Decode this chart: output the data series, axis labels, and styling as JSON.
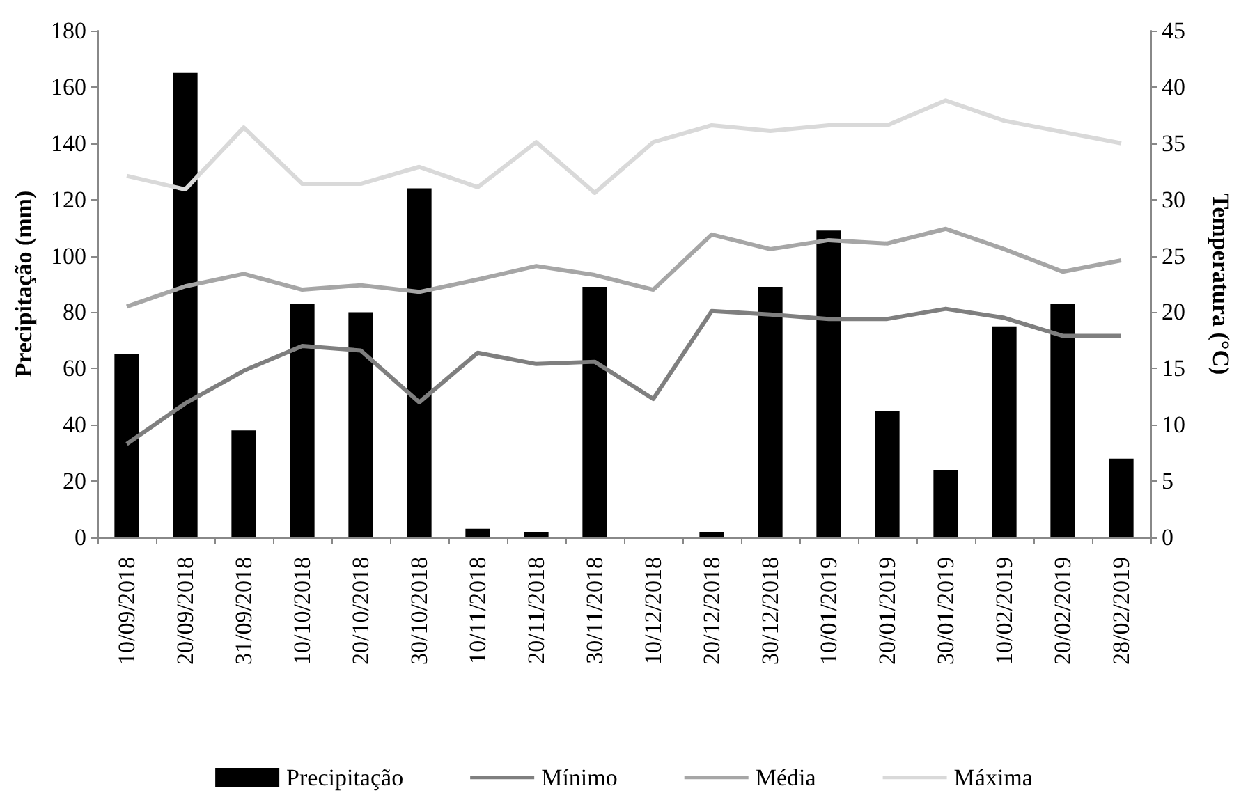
{
  "chart_data": {
    "type": "bar",
    "ylabel": "Precipitação (mm)",
    "y2label": "Temperatura (°C)",
    "categories": [
      "10/09/2018",
      "20/09/2018",
      "31/09/2018",
      "10/10/2018",
      "20/10/2018",
      "30/10/2018",
      "10/11/2018",
      "20/11/2018",
      "30/11/2018",
      "10/12/2018",
      "20/12/2018",
      "30/12/2018",
      "10/01/2019",
      "20/01/2019",
      "30/01/2019",
      "10/02/2019",
      "20/02/2019",
      "28/02/2019"
    ],
    "series": [
      {
        "name": "Precipitação",
        "color": "#000000",
        "values": [
          65,
          165,
          38,
          83,
          80,
          124,
          3,
          2,
          89,
          0,
          2,
          89,
          109,
          45,
          24,
          75,
          83,
          28
        ]
      },
      {
        "name": "Mínimo",
        "type": "line",
        "axis": "y2",
        "color": "#7f7f7f",
        "values": [
          8.3,
          11.9,
          14.8,
          17,
          16.6,
          12,
          16.4,
          15.4,
          15.6,
          12.3,
          20.1,
          19.8,
          19.4,
          19.4,
          20.3,
          19.5,
          17.9,
          17.9
        ]
      },
      {
        "name": "Média",
        "type": "line",
        "axis": "y2",
        "color": "#a6a6a6",
        "values": [
          20.5,
          22.3,
          23.4,
          22,
          22.4,
          21.8,
          22.9,
          24.1,
          23.3,
          22,
          26.9,
          25.6,
          26.4,
          26.1,
          27.4,
          25.6,
          23.6,
          24.6
        ]
      },
      {
        "name": "Máxima",
        "type": "line",
        "axis": "y2",
        "color": "#d9d9d9",
        "values": [
          32.1,
          30.9,
          36.4,
          31.4,
          31.4,
          32.9,
          31.1,
          35.1,
          30.6,
          35.1,
          36.6,
          36.1,
          36.6,
          36.6,
          38.8,
          37,
          36,
          35
        ]
      }
    ],
    "ylim": [
      0,
      180
    ],
    "yticks": [
      0,
      20,
      40,
      60,
      80,
      100,
      120,
      140,
      160,
      180
    ],
    "y2lim": [
      0,
      45
    ],
    "y2ticks": [
      0,
      5,
      10,
      15,
      20,
      25,
      30,
      35,
      40,
      45
    ],
    "grid": false,
    "legend": "bottom",
    "marker": "none",
    "line_style": "solid"
  }
}
